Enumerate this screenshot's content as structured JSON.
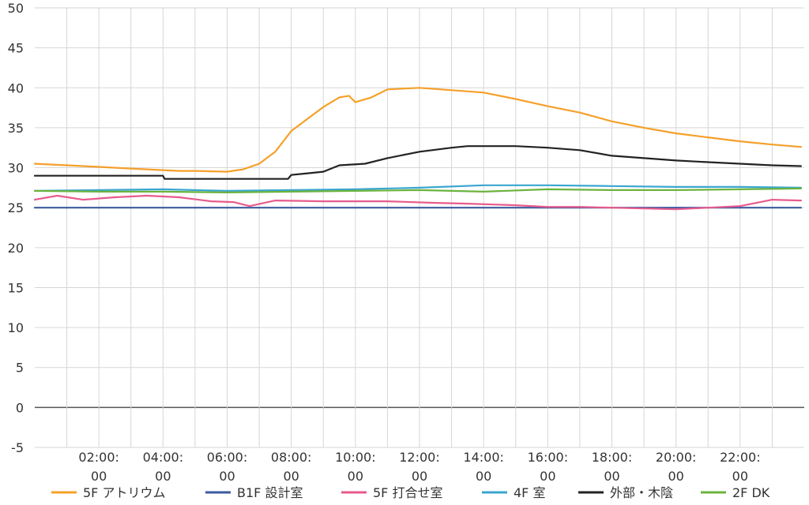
{
  "chart_data": {
    "type": "line",
    "title": "",
    "xlabel": "",
    "ylabel": "",
    "ylim": [
      -5,
      50
    ],
    "xlim": [
      0,
      24
    ],
    "grid": true,
    "legend_position": "bottom",
    "y_ticks": [
      "50",
      "45",
      "40",
      "35",
      "30",
      "25",
      "20",
      "15",
      "10",
      "5",
      "0",
      "-5"
    ],
    "x_ticks": [
      {
        "hour": 2,
        "line1": "02:00:",
        "line2": "00"
      },
      {
        "hour": 4,
        "line1": "04:00:",
        "line2": "00"
      },
      {
        "hour": 6,
        "line1": "06:00:",
        "line2": "00"
      },
      {
        "hour": 8,
        "line1": "08:00:",
        "line2": "00"
      },
      {
        "hour": 10,
        "line1": "10:00:",
        "line2": "00"
      },
      {
        "hour": 12,
        "line1": "12:00:",
        "line2": "00"
      },
      {
        "hour": 14,
        "line1": "14:00:",
        "line2": "00"
      },
      {
        "hour": 16,
        "line1": "16:00:",
        "line2": "00"
      },
      {
        "hour": 18,
        "line1": "18:00:",
        "line2": "00"
      },
      {
        "hour": 20,
        "line1": "20:00:",
        "line2": "00"
      },
      {
        "hour": 22,
        "line1": "22:00:",
        "line2": "00"
      }
    ],
    "series": [
      {
        "name": "5F アトリウム",
        "color": "#f5a02a",
        "x": [
          0,
          1,
          2,
          3,
          4,
          4.5,
          5,
          6,
          6.5,
          7,
          7.5,
          8,
          9,
          9.5,
          9.8,
          10,
          10.5,
          11,
          12,
          13,
          14,
          15,
          16,
          17,
          18,
          19,
          20,
          21,
          22,
          23,
          23.9
        ],
        "y": [
          30.5,
          30.3,
          30.1,
          29.9,
          29.7,
          29.6,
          29.6,
          29.5,
          29.8,
          30.5,
          32,
          34.6,
          37.6,
          38.8,
          39,
          38.2,
          38.8,
          39.8,
          40,
          39.7,
          39.4,
          38.6,
          37.7,
          36.9,
          35.8,
          35.0,
          34.3,
          33.8,
          33.3,
          32.9,
          32.6
        ]
      },
      {
        "name": "B1F 設計室",
        "color": "#3b5aa0",
        "x": [
          0,
          6,
          12,
          18,
          23.9
        ],
        "y": [
          25.0,
          25.0,
          25.0,
          25.0,
          25.0
        ]
      },
      {
        "name": "5F 打合せ室",
        "color": "#e75b8d",
        "x": [
          0,
          0.7,
          1.5,
          2.5,
          3.5,
          4.5,
          5.5,
          6.2,
          6.7,
          7.5,
          9,
          11,
          12.5,
          13.5,
          15,
          16,
          17,
          18,
          19,
          20,
          21,
          22,
          23,
          23.9
        ],
        "y": [
          26.0,
          26.5,
          26.0,
          26.3,
          26.5,
          26.3,
          25.8,
          25.7,
          25.2,
          25.9,
          25.8,
          25.8,
          25.6,
          25.5,
          25.3,
          25.1,
          25.1,
          25.0,
          24.9,
          24.8,
          25.0,
          25.2,
          26.0,
          25.9
        ]
      },
      {
        "name": "4F 室",
        "color": "#3aa6d0",
        "x": [
          0,
          2,
          4,
          6,
          8,
          10,
          12,
          14,
          16,
          18,
          20,
          22,
          23.9
        ],
        "y": [
          27.1,
          27.2,
          27.3,
          27.1,
          27.2,
          27.3,
          27.5,
          27.8,
          27.8,
          27.7,
          27.6,
          27.6,
          27.5
        ]
      },
      {
        "name": "外部・木陰",
        "color": "#222222",
        "x": [
          0,
          4,
          4.05,
          7.9,
          8,
          9,
          9.5,
          10.3,
          11,
          12,
          13,
          13.5,
          15,
          16,
          17,
          18,
          19,
          20,
          21,
          22,
          23,
          23.9
        ],
        "y": [
          29.0,
          29.0,
          28.6,
          28.6,
          29.1,
          29.5,
          30.3,
          30.5,
          31.2,
          32.0,
          32.5,
          32.7,
          32.7,
          32.5,
          32.2,
          31.5,
          31.2,
          30.9,
          30.7,
          30.5,
          30.3,
          30.2
        ]
      },
      {
        "name": "2F DK",
        "color": "#6cb33e",
        "x": [
          0,
          2,
          4,
          6,
          8,
          10,
          12,
          14,
          16,
          18,
          20,
          22,
          23.9
        ],
        "y": [
          27.1,
          27.0,
          27.0,
          26.9,
          27.0,
          27.1,
          27.2,
          27.0,
          27.3,
          27.2,
          27.2,
          27.3,
          27.4
        ]
      }
    ]
  }
}
